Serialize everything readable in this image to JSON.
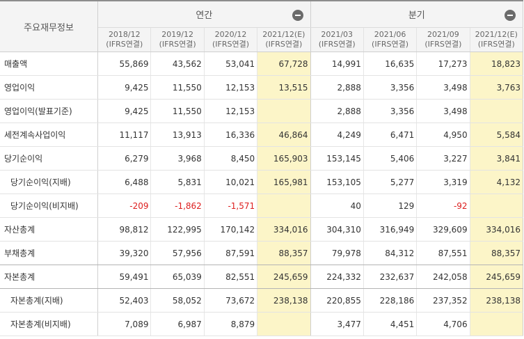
{
  "header": {
    "row_label_header": "주요재무정보",
    "groups": [
      {
        "label": "연간",
        "toggle_icon": "minus-circle-icon"
      },
      {
        "label": "분기",
        "toggle_icon": "minus-circle-icon"
      }
    ],
    "columns": [
      {
        "period": "2018/12",
        "basis": "(IFRS연결)"
      },
      {
        "period": "2019/12",
        "basis": "(IFRS연결)"
      },
      {
        "period": "2020/12",
        "basis": "(IFRS연결)"
      },
      {
        "period": "2021/12(E)",
        "basis": "(IFRS연결)"
      },
      {
        "period": "2021/03",
        "basis": "(IFRS연결)"
      },
      {
        "period": "2021/06",
        "basis": "(IFRS연결)"
      },
      {
        "period": "2021/09",
        "basis": "(IFRS연결)"
      },
      {
        "period": "2021/12(E)",
        "basis": "(IFRS연결)"
      }
    ]
  },
  "colors": {
    "estimate_bg": "#fcf5c8",
    "negative": "#dd1e1e"
  },
  "rows": [
    {
      "label": "매출액",
      "values": [
        "55,869",
        "43,562",
        "53,041",
        "67,728",
        "14,991",
        "16,635",
        "17,273",
        "18,823"
      ]
    },
    {
      "label": "영업이익",
      "values": [
        "9,425",
        "11,550",
        "12,153",
        "13,515",
        "2,888",
        "3,356",
        "3,498",
        "3,763"
      ]
    },
    {
      "label": "영업이익(발표기준)",
      "values": [
        "9,425",
        "11,550",
        "12,153",
        "",
        "2,888",
        "3,356",
        "3,498",
        ""
      ]
    },
    {
      "label": "세전계속사업이익",
      "values": [
        "11,117",
        "13,913",
        "16,336",
        "46,864",
        "4,249",
        "6,471",
        "4,950",
        "5,584"
      ]
    },
    {
      "label": "당기순이익",
      "values": [
        "6,279",
        "3,968",
        "8,450",
        "165,903",
        "153,145",
        "5,406",
        "3,227",
        "3,841"
      ]
    },
    {
      "label": "당기순이익(지배)",
      "values": [
        "6,488",
        "5,831",
        "10,021",
        "165,981",
        "153,105",
        "5,277",
        "3,319",
        "4,132"
      ]
    },
    {
      "label": "당기순이익(비지배)",
      "values": [
        "-209",
        "-1,862",
        "-1,571",
        "",
        "40",
        "129",
        "-92",
        ""
      ]
    },
    {
      "label": "자산총계",
      "values": [
        "98,812",
        "122,995",
        "170,142",
        "334,016",
        "304,310",
        "316,949",
        "329,609",
        "334,016"
      ]
    },
    {
      "label": "부채총계",
      "values": [
        "39,320",
        "57,956",
        "87,591",
        "88,357",
        "79,978",
        "84,312",
        "87,551",
        "88,357"
      ]
    },
    {
      "label": "자본총계",
      "values": [
        "59,491",
        "65,039",
        "82,551",
        "245,659",
        "224,332",
        "232,637",
        "242,058",
        "245,659"
      ]
    },
    {
      "label": "자본총계(지배)",
      "values": [
        "52,403",
        "58,052",
        "73,672",
        "238,138",
        "220,855",
        "228,186",
        "237,352",
        "238,138"
      ]
    },
    {
      "label": "자본총계(비지배)",
      "values": [
        "7,089",
        "6,987",
        "8,879",
        "",
        "3,477",
        "4,451",
        "4,706",
        ""
      ]
    }
  ]
}
